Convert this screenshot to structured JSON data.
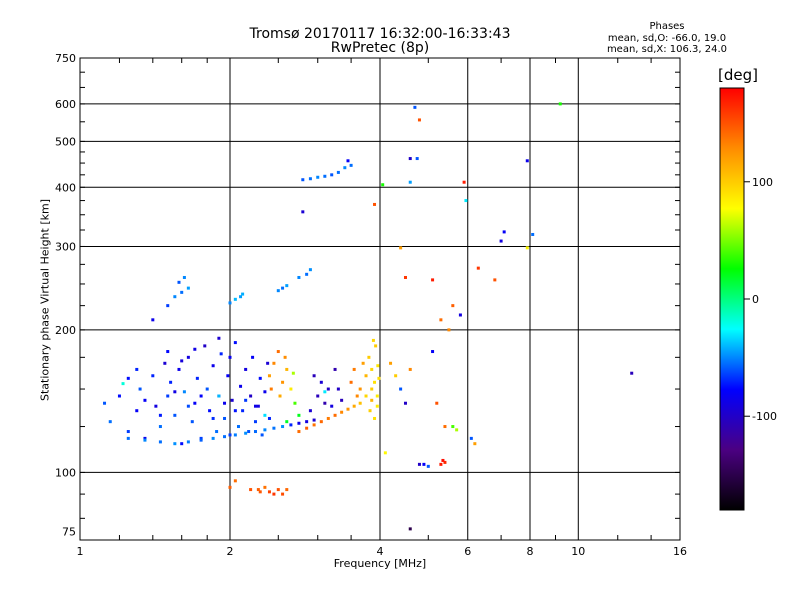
{
  "header": {
    "title": "Tromsø 20170117 16:32:00-16:33:43",
    "subtitle": "RwPretec (8p)",
    "phases_title": "Phases",
    "phases_o": "mean, sd,O: -66.0, 19.0",
    "phases_x": "mean, sd,X: 106.3, 24.0"
  },
  "colorbar": {
    "unit_label": "[deg]",
    "range": [
      -180,
      180
    ],
    "ticks": [
      {
        "value": 100,
        "label": "100"
      },
      {
        "value": 0,
        "label": "0"
      },
      {
        "value": -100,
        "label": "-100"
      }
    ],
    "colors": [
      "#000000",
      "#4b0082",
      "#0000ff",
      "#00ffff",
      "#00ff00",
      "#ffff00",
      "#ff8c00",
      "#ff0000"
    ]
  },
  "chart_data": {
    "type": "scatter",
    "title": "Tromsø 20170117 16:32:00-16:33:43",
    "subtitle": "RwPretec (8p)",
    "xlabel": "Frequency [MHz]",
    "ylabel": "Stationary phase Virtual Height [km]",
    "x_scale": "log",
    "y_scale": "log",
    "xlim": [
      1,
      16
    ],
    "ylim": [
      72,
      750
    ],
    "grid": true,
    "x_ticks": [
      1,
      2,
      4,
      6,
      8,
      10,
      16
    ],
    "y_ticks": [
      75,
      100,
      200,
      300,
      400,
      500,
      600,
      750
    ],
    "color_label": "[deg]",
    "points": [
      [
        1.12,
        140,
        -60
      ],
      [
        1.15,
        128,
        -55
      ],
      [
        1.2,
        145,
        -75
      ],
      [
        1.25,
        122,
        -65
      ],
      [
        1.3,
        135,
        -80
      ],
      [
        1.32,
        150,
        -60
      ],
      [
        1.35,
        118,
        -85
      ],
      [
        1.4,
        160,
        -70
      ],
      [
        1.42,
        138,
        -90
      ],
      [
        1.45,
        125,
        -55
      ],
      [
        1.48,
        170,
        -95
      ],
      [
        1.5,
        145,
        -65
      ],
      [
        1.52,
        155,
        -70
      ],
      [
        1.55,
        132,
        -60
      ],
      [
        1.58,
        165,
        -85
      ],
      [
        1.6,
        115,
        -75
      ],
      [
        1.62,
        148,
        -50
      ],
      [
        1.65,
        175,
        -90
      ],
      [
        1.68,
        128,
        -60
      ],
      [
        1.7,
        140,
        -80
      ],
      [
        1.72,
        158,
        -70
      ],
      [
        1.75,
        118,
        -65
      ],
      [
        1.78,
        185,
        -100
      ],
      [
        1.8,
        150,
        -60
      ],
      [
        1.82,
        135,
        -75
      ],
      [
        1.85,
        168,
        -85
      ],
      [
        1.88,
        122,
        -55
      ],
      [
        1.9,
        145,
        -90
      ],
      [
        1.92,
        178,
        -70
      ],
      [
        1.95,
        130,
        -60
      ],
      [
        1.98,
        160,
        -80
      ],
      [
        2.0,
        120,
        -65
      ],
      [
        2.02,
        142,
        -95
      ],
      [
        2.05,
        188,
        -75
      ],
      [
        2.08,
        125,
        -55
      ],
      [
        2.1,
        152,
        -85
      ],
      [
        2.12,
        135,
        -70
      ],
      [
        2.15,
        165,
        -90
      ],
      [
        2.18,
        122,
        -60
      ],
      [
        2.2,
        145,
        -100
      ],
      [
        2.22,
        175,
        -80
      ],
      [
        2.25,
        128,
        -65
      ],
      [
        2.28,
        138,
        -90
      ],
      [
        2.3,
        158,
        -75
      ],
      [
        2.32,
        120,
        -60
      ],
      [
        2.35,
        148,
        -85
      ],
      [
        2.38,
        170,
        -95
      ],
      [
        2.4,
        130,
        -70
      ],
      [
        1.25,
        158,
        -75
      ],
      [
        1.35,
        142,
        -80
      ],
      [
        1.45,
        132,
        -72
      ],
      [
        1.55,
        148,
        -88
      ],
      [
        1.65,
        138,
        -62
      ],
      [
        1.75,
        145,
        -78
      ],
      [
        1.85,
        130,
        -68
      ],
      [
        1.95,
        140,
        -84
      ],
      [
        2.05,
        135,
        -74
      ],
      [
        2.15,
        142,
        -66
      ],
      [
        2.25,
        138,
        -86
      ],
      [
        1.6,
        172,
        -92
      ],
      [
        1.7,
        182,
        -88
      ],
      [
        1.9,
        192,
        -96
      ],
      [
        2.0,
        175,
        -82
      ],
      [
        1.3,
        165,
        -70
      ],
      [
        1.5,
        180,
        -76
      ],
      [
        1.25,
        118,
        -55
      ],
      [
        1.35,
        117,
        -50
      ],
      [
        1.45,
        116,
        -55
      ],
      [
        1.55,
        115,
        -48
      ],
      [
        1.65,
        116,
        -52
      ],
      [
        1.75,
        117,
        -58
      ],
      [
        1.85,
        118,
        -50
      ],
      [
        1.95,
        119,
        -55
      ],
      [
        2.05,
        120,
        -52
      ],
      [
        2.15,
        121,
        -48
      ],
      [
        2.25,
        122,
        -56
      ],
      [
        2.35,
        123,
        -50
      ],
      [
        2.45,
        124,
        -54
      ],
      [
        2.55,
        125,
        -48
      ],
      [
        2.65,
        126,
        -70
      ],
      [
        2.75,
        127,
        -85
      ],
      [
        2.85,
        128,
        -90
      ],
      [
        2.95,
        129,
        -95
      ],
      [
        2.4,
        160,
        120
      ],
      [
        2.45,
        170,
        130
      ],
      [
        2.5,
        180,
        140
      ],
      [
        2.55,
        155,
        125
      ],
      [
        2.6,
        165,
        110
      ],
      [
        2.52,
        145,
        115
      ],
      [
        2.42,
        150,
        135
      ],
      [
        2.58,
        175,
        128
      ],
      [
        2.65,
        150,
        85
      ],
      [
        2.7,
        140,
        40
      ],
      [
        2.75,
        132,
        20
      ],
      [
        2.68,
        162,
        60
      ],
      [
        2.75,
        122,
        140
      ],
      [
        2.85,
        124,
        145
      ],
      [
        2.95,
        126,
        138
      ],
      [
        3.05,
        128,
        142
      ],
      [
        3.15,
        130,
        135
      ],
      [
        3.25,
        132,
        140
      ],
      [
        3.35,
        134,
        130
      ],
      [
        3.45,
        136,
        125
      ],
      [
        3.55,
        138,
        115
      ],
      [
        3.65,
        140,
        105
      ],
      [
        3.75,
        145,
        95
      ],
      [
        3.85,
        150,
        100
      ],
      [
        3.0,
        145,
        -105
      ],
      [
        3.05,
        155,
        -95
      ],
      [
        3.1,
        140,
        -110
      ],
      [
        3.15,
        150,
        -100
      ],
      [
        3.2,
        138,
        -90
      ],
      [
        2.95,
        160,
        -105
      ],
      [
        3.3,
        150,
        -100
      ],
      [
        3.25,
        165,
        -110
      ],
      [
        2.9,
        135,
        -95
      ],
      [
        3.35,
        142,
        -105
      ],
      [
        3.5,
        155,
        140
      ],
      [
        3.55,
        165,
        135
      ],
      [
        3.6,
        145,
        130
      ],
      [
        3.7,
        170,
        120
      ],
      [
        3.75,
        160,
        110
      ],
      [
        3.65,
        150,
        125
      ],
      [
        3.8,
        175,
        100
      ],
      [
        3.85,
        165,
        95
      ],
      [
        3.9,
        155,
        90
      ],
      [
        3.95,
        145,
        85
      ],
      [
        3.92,
        185,
        100
      ],
      [
        3.88,
        190,
        95
      ],
      [
        3.96,
        168,
        88
      ],
      [
        3.98,
        158,
        92
      ],
      [
        3.82,
        135,
        98
      ],
      [
        3.9,
        130,
        90
      ],
      [
        3.95,
        138,
        85
      ],
      [
        3.85,
        142,
        110
      ],
      [
        1.22,
        154,
        -18
      ],
      [
        1.9,
        145,
        -40
      ],
      [
        2.35,
        132,
        -32
      ],
      [
        2.6,
        128,
        18
      ],
      [
        3.1,
        148,
        -30
      ],
      [
        2.0,
        93,
        145
      ],
      [
        2.05,
        96,
        140
      ],
      [
        2.2,
        92,
        150
      ],
      [
        2.3,
        91,
        148
      ],
      [
        2.4,
        91,
        155
      ],
      [
        2.5,
        92,
        150
      ],
      [
        2.6,
        92,
        142
      ],
      [
        2.35,
        93,
        138
      ],
      [
        2.45,
        90,
        160
      ],
      [
        2.55,
        90,
        152
      ],
      [
        2.28,
        92,
        146
      ],
      [
        1.55,
        235,
        -50
      ],
      [
        1.6,
        240,
        -55
      ],
      [
        1.65,
        245,
        -45
      ],
      [
        1.58,
        252,
        -60
      ],
      [
        1.62,
        258,
        -50
      ],
      [
        1.5,
        225,
        -65
      ],
      [
        2.05,
        232,
        -40
      ],
      [
        2.1,
        235,
        -45
      ],
      [
        2.0,
        228,
        -50
      ],
      [
        2.12,
        238,
        -42
      ],
      [
        2.5,
        242,
        -50
      ],
      [
        2.55,
        245,
        -55
      ],
      [
        2.6,
        248,
        -45
      ],
      [
        2.75,
        258,
        -50
      ],
      [
        2.85,
        262,
        -55
      ],
      [
        1.4,
        210,
        -85
      ],
      [
        2.9,
        268,
        -48
      ],
      [
        2.8,
        415,
        -60
      ],
      [
        2.9,
        417,
        -55
      ],
      [
        3.0,
        420,
        -50
      ],
      [
        3.1,
        422,
        -55
      ],
      [
        3.2,
        425,
        -60
      ],
      [
        3.3,
        430,
        -55
      ],
      [
        3.4,
        440,
        -50
      ],
      [
        3.5,
        445,
        -55
      ],
      [
        3.45,
        455,
        -80
      ],
      [
        2.8,
        355,
        -95
      ],
      [
        4.7,
        590,
        -60
      ],
      [
        4.8,
        555,
        150
      ],
      [
        4.6,
        460,
        -100
      ],
      [
        4.75,
        460,
        -60
      ],
      [
        4.6,
        410,
        -45
      ],
      [
        5.9,
        410,
        170
      ],
      [
        5.95,
        375,
        -30
      ],
      [
        7.0,
        308,
        -90
      ],
      [
        7.1,
        322,
        -80
      ],
      [
        7.9,
        455,
        -85
      ],
      [
        9.2,
        600,
        30
      ],
      [
        12.8,
        162,
        -105
      ],
      [
        4.05,
        405,
        30
      ],
      [
        3.9,
        368,
        150
      ],
      [
        4.4,
        298,
        120
      ],
      [
        4.5,
        258,
        160
      ],
      [
        5.1,
        255,
        170
      ],
      [
        5.3,
        210,
        140
      ],
      [
        5.5,
        200,
        130
      ],
      [
        5.6,
        225,
        145
      ],
      [
        6.3,
        270,
        160
      ],
      [
        5.8,
        215,
        -90
      ],
      [
        6.8,
        255,
        150
      ],
      [
        7.9,
        298,
        80
      ],
      [
        8.1,
        318,
        -55
      ],
      [
        4.8,
        104,
        -100
      ],
      [
        4.9,
        104,
        -80
      ],
      [
        5.0,
        103,
        -60
      ],
      [
        5.3,
        104,
        170
      ],
      [
        5.4,
        105,
        165
      ],
      [
        5.35,
        106,
        175
      ],
      [
        5.6,
        125,
        40
      ],
      [
        5.7,
        123,
        60
      ],
      [
        4.6,
        76,
        -150
      ],
      [
        4.1,
        110,
        80
      ],
      [
        6.2,
        115,
        120
      ],
      [
        4.2,
        170,
        120
      ],
      [
        4.3,
        160,
        100
      ],
      [
        4.4,
        150,
        -60
      ],
      [
        4.6,
        165,
        130
      ],
      [
        5.1,
        180,
        -80
      ],
      [
        5.2,
        140,
        150
      ],
      [
        4.5,
        140,
        -100
      ],
      [
        5.4,
        125,
        140
      ],
      [
        6.1,
        118,
        -60
      ]
    ]
  }
}
